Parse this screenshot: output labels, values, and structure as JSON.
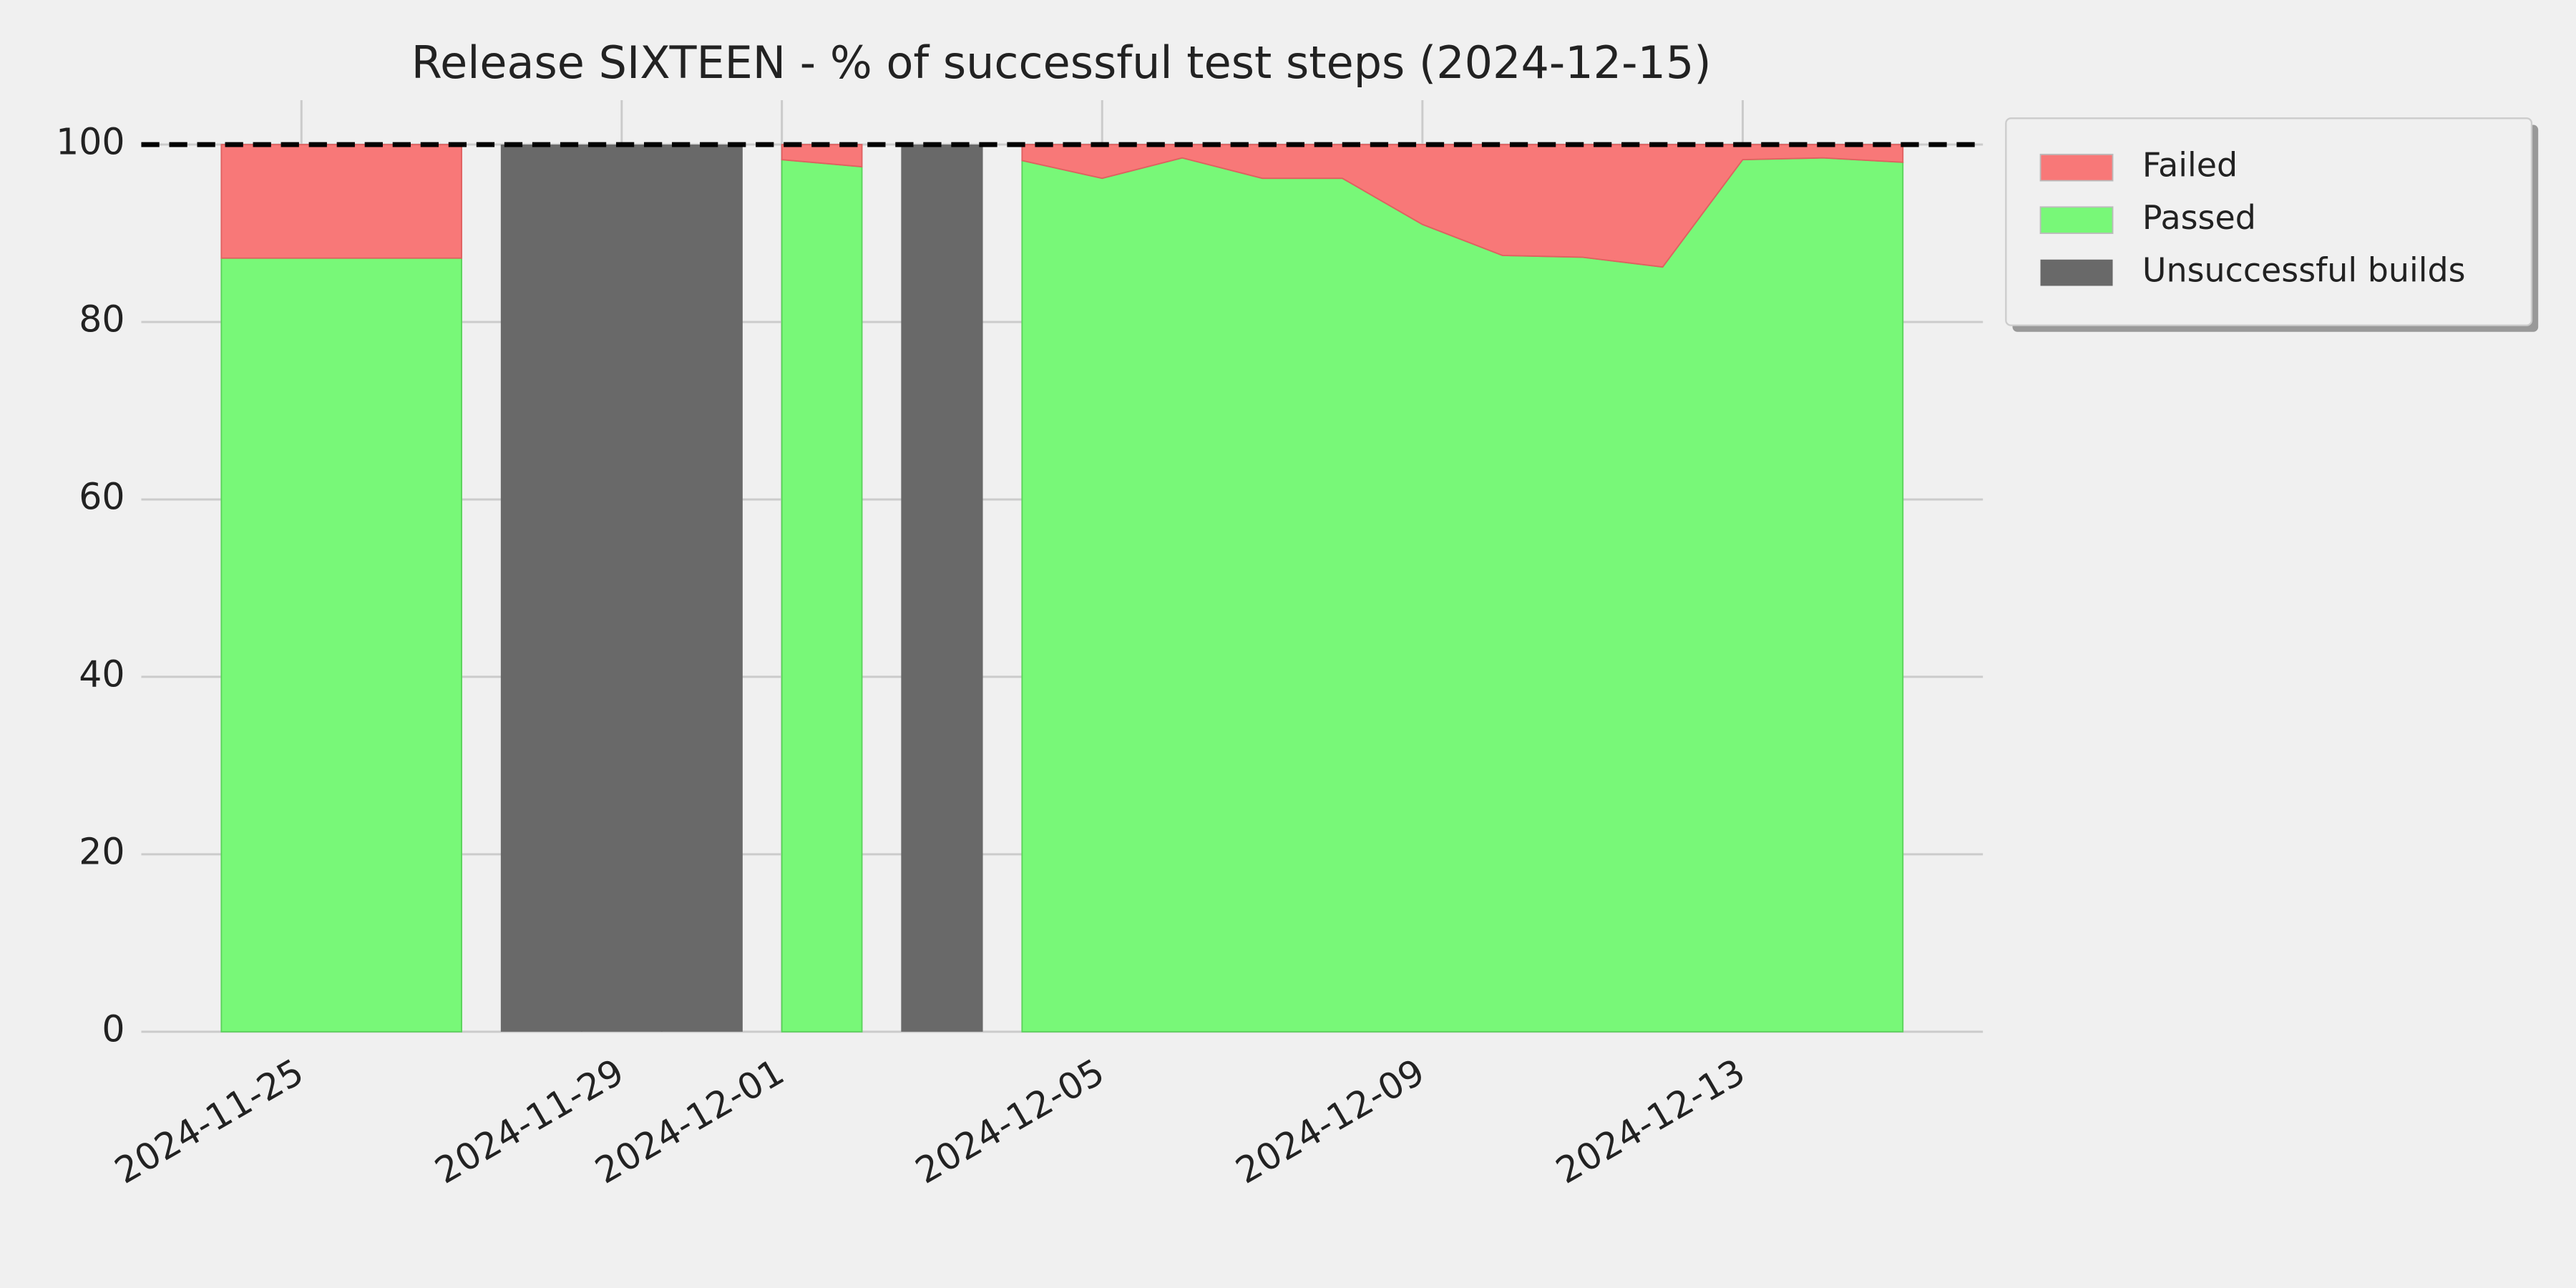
{
  "chart_data": {
    "type": "stacked_area",
    "title": "Release SIXTEEN - % of successful test steps (2024-12-15)",
    "x": [
      "2024-11-24",
      "2024-11-25",
      "2024-11-26",
      "2024-11-27",
      "2024-11-28",
      "2024-11-29",
      "2024-11-30",
      "2024-12-01",
      "2024-12-02",
      "2024-12-03",
      "2024-12-04",
      "2024-12-05",
      "2024-12-06",
      "2024-12-07",
      "2024-12-08",
      "2024-12-09",
      "2024-12-10",
      "2024-12-11",
      "2024-12-12",
      "2024-12-13",
      "2024-12-14",
      "2024-12-15"
    ],
    "series": [
      {
        "name": "Failed",
        "color": "#f87878",
        "values": [
          12.8,
          12.8,
          12.8,
          12.8,
          null,
          null,
          null,
          1.7,
          2.5,
          null,
          1.8,
          3.8,
          1.5,
          3.8,
          3.8,
          9,
          12.5,
          12.7,
          13.8,
          1.7,
          1.5,
          2
        ]
      },
      {
        "name": "Passed",
        "color": "#78f878",
        "values": [
          87.2,
          87.2,
          87.2,
          87.2,
          null,
          null,
          null,
          98.3,
          97.5,
          null,
          98.2,
          96.2,
          98.5,
          96.2,
          96.2,
          91,
          87.5,
          87.3,
          86.2,
          98.3,
          98.5,
          98
        ]
      },
      {
        "name": "Unsuccessful builds",
        "color": "#696969",
        "values": [
          null,
          null,
          null,
          null,
          100,
          100,
          100,
          null,
          null,
          100,
          null,
          null,
          null,
          null,
          null,
          null,
          null,
          null,
          null,
          null,
          null,
          null
        ]
      }
    ],
    "reference_line": 100,
    "xlim": [
      "2024-11-23",
      "2024-12-16"
    ],
    "xticks": [
      "2024-11-25",
      "2024-11-29",
      "2024-12-01",
      "2024-12-05",
      "2024-12-09",
      "2024-12-13"
    ],
    "ylim": [
      0,
      105
    ],
    "yticks": [
      0,
      20,
      40,
      60,
      80,
      100
    ],
    "grid": true,
    "legend": "outside-right"
  }
}
